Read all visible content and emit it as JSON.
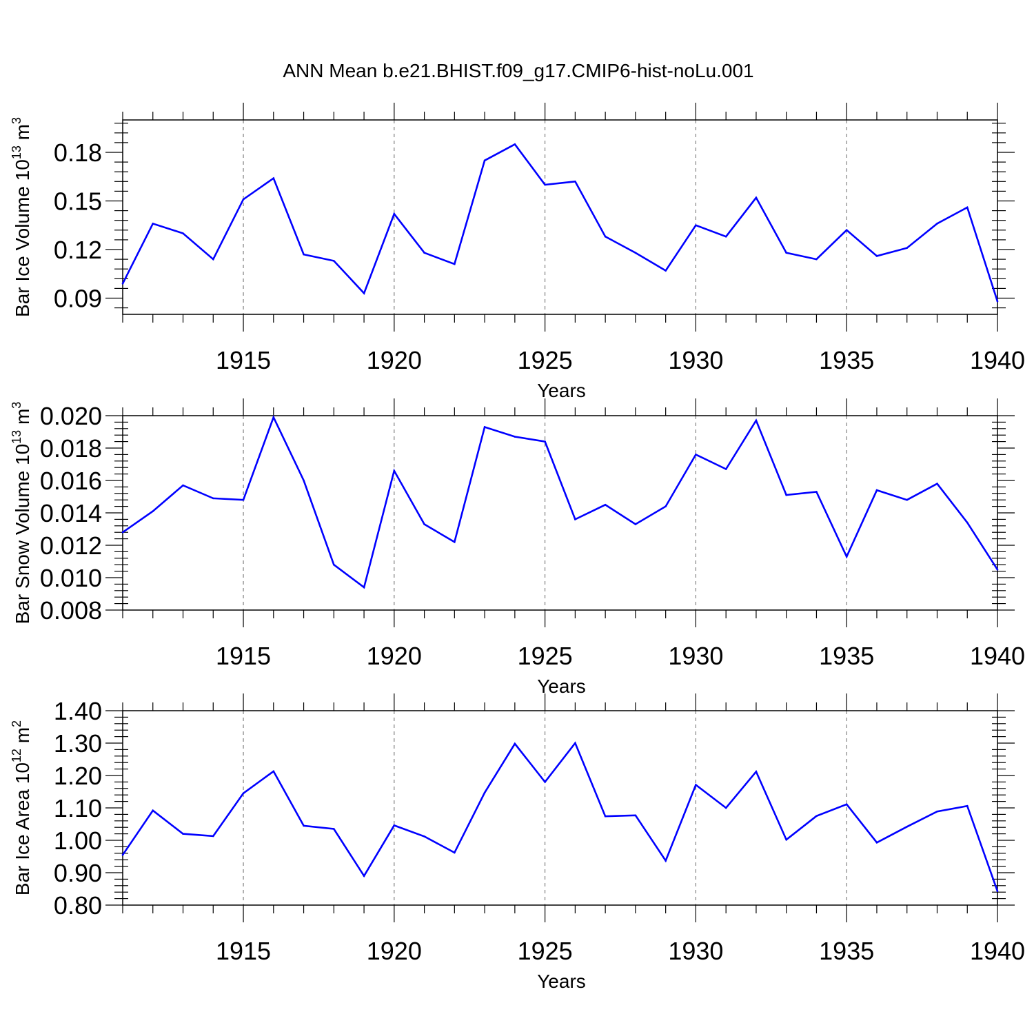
{
  "figure_title": "ANN Mean b.e21.BHIST.f09_g17.CMIP6-hist-noLu.001",
  "colors": {
    "line": "#0000ff",
    "axis": "#000000",
    "grid": "#666666"
  },
  "chart_data": [
    {
      "type": "line",
      "ylabel_main": "Bar Ice Volume 10",
      "ylabel_exp": "13",
      "ylabel_unit": " m",
      "ylabel_unit_exp": "3",
      "xlabel": "Years",
      "xlim": [
        1911,
        1940
      ],
      "ylim": [
        0.08,
        0.2
      ],
      "yticks": [
        "0.09",
        "0.12",
        "0.15",
        "0.18"
      ],
      "ytick_values": [
        0.09,
        0.12,
        0.15,
        0.18
      ],
      "xtick_labels": [
        "1915",
        "1920",
        "1925",
        "1930",
        "1935",
        "1940"
      ],
      "xtick_values": [
        1915,
        1920,
        1925,
        1930,
        1935,
        1940
      ],
      "x": [
        1911,
        1912,
        1913,
        1914,
        1915,
        1916,
        1917,
        1918,
        1919,
        1920,
        1921,
        1922,
        1923,
        1924,
        1925,
        1926,
        1927,
        1928,
        1929,
        1930,
        1931,
        1932,
        1933,
        1934,
        1935,
        1936,
        1937,
        1938,
        1939,
        1940
      ],
      "values": [
        0.099,
        0.136,
        0.13,
        0.114,
        0.151,
        0.164,
        0.117,
        0.113,
        0.093,
        0.142,
        0.118,
        0.111,
        0.175,
        0.185,
        0.16,
        0.162,
        0.128,
        0.118,
        0.107,
        0.135,
        0.128,
        0.152,
        0.118,
        0.114,
        0.132,
        0.116,
        0.121,
        0.136,
        0.146,
        0.088
      ]
    },
    {
      "type": "line",
      "ylabel_main": "Bar Snow Volume 10",
      "ylabel_exp": "13",
      "ylabel_unit": " m",
      "ylabel_unit_exp": "3",
      "xlabel": "Years",
      "xlim": [
        1911,
        1940
      ],
      "ylim": [
        0.008,
        0.02
      ],
      "yticks": [
        "0.008",
        "0.010",
        "0.012",
        "0.014",
        "0.016",
        "0.018",
        "0.020"
      ],
      "ytick_values": [
        0.008,
        0.01,
        0.012,
        0.014,
        0.016,
        0.018,
        0.02
      ],
      "xtick_labels": [
        "1915",
        "1920",
        "1925",
        "1930",
        "1935",
        "1940"
      ],
      "xtick_values": [
        1915,
        1920,
        1925,
        1930,
        1935,
        1940
      ],
      "x": [
        1911,
        1912,
        1913,
        1914,
        1915,
        1916,
        1917,
        1918,
        1919,
        1920,
        1921,
        1922,
        1923,
        1924,
        1925,
        1926,
        1927,
        1928,
        1929,
        1930,
        1931,
        1932,
        1933,
        1934,
        1935,
        1936,
        1937,
        1938,
        1939,
        1940
      ],
      "values": [
        0.0128,
        0.0141,
        0.0157,
        0.0149,
        0.0148,
        0.0199,
        0.016,
        0.0108,
        0.0094,
        0.0166,
        0.0133,
        0.0122,
        0.0193,
        0.0187,
        0.0184,
        0.0136,
        0.0145,
        0.0133,
        0.0144,
        0.0176,
        0.0167,
        0.0197,
        0.0151,
        0.0153,
        0.0113,
        0.0154,
        0.0148,
        0.0158,
        0.0134,
        0.0105
      ]
    },
    {
      "type": "line",
      "ylabel_main": "Bar Ice Area 10",
      "ylabel_exp": "12",
      "ylabel_unit": " m",
      "ylabel_unit_exp": "2",
      "xlabel": "Years",
      "xlim": [
        1911,
        1940
      ],
      "ylim": [
        0.8,
        1.4
      ],
      "yticks": [
        "0.80",
        "0.90",
        "1.00",
        "1.10",
        "1.20",
        "1.30",
        "1.40"
      ],
      "ytick_values": [
        0.8,
        0.9,
        1.0,
        1.1,
        1.2,
        1.3,
        1.4
      ],
      "xtick_labels": [
        "1915",
        "1920",
        "1925",
        "1930",
        "1935",
        "1940"
      ],
      "xtick_values": [
        1915,
        1920,
        1925,
        1930,
        1935,
        1940
      ],
      "x": [
        1911,
        1912,
        1913,
        1914,
        1915,
        1916,
        1917,
        1918,
        1919,
        1920,
        1921,
        1922,
        1923,
        1924,
        1925,
        1926,
        1927,
        1928,
        1929,
        1930,
        1931,
        1932,
        1933,
        1934,
        1935,
        1936,
        1937,
        1938,
        1939,
        1940
      ],
      "values": [
        0.955,
        1.092,
        1.02,
        1.013,
        1.145,
        1.213,
        1.045,
        1.035,
        0.89,
        1.046,
        1.012,
        0.962,
        1.147,
        1.298,
        1.18,
        1.3,
        1.074,
        1.077,
        0.937,
        1.171,
        1.1,
        1.212,
        1.002,
        1.075,
        1.111,
        0.993,
        1.042,
        1.089,
        1.106,
        0.843
      ]
    }
  ]
}
